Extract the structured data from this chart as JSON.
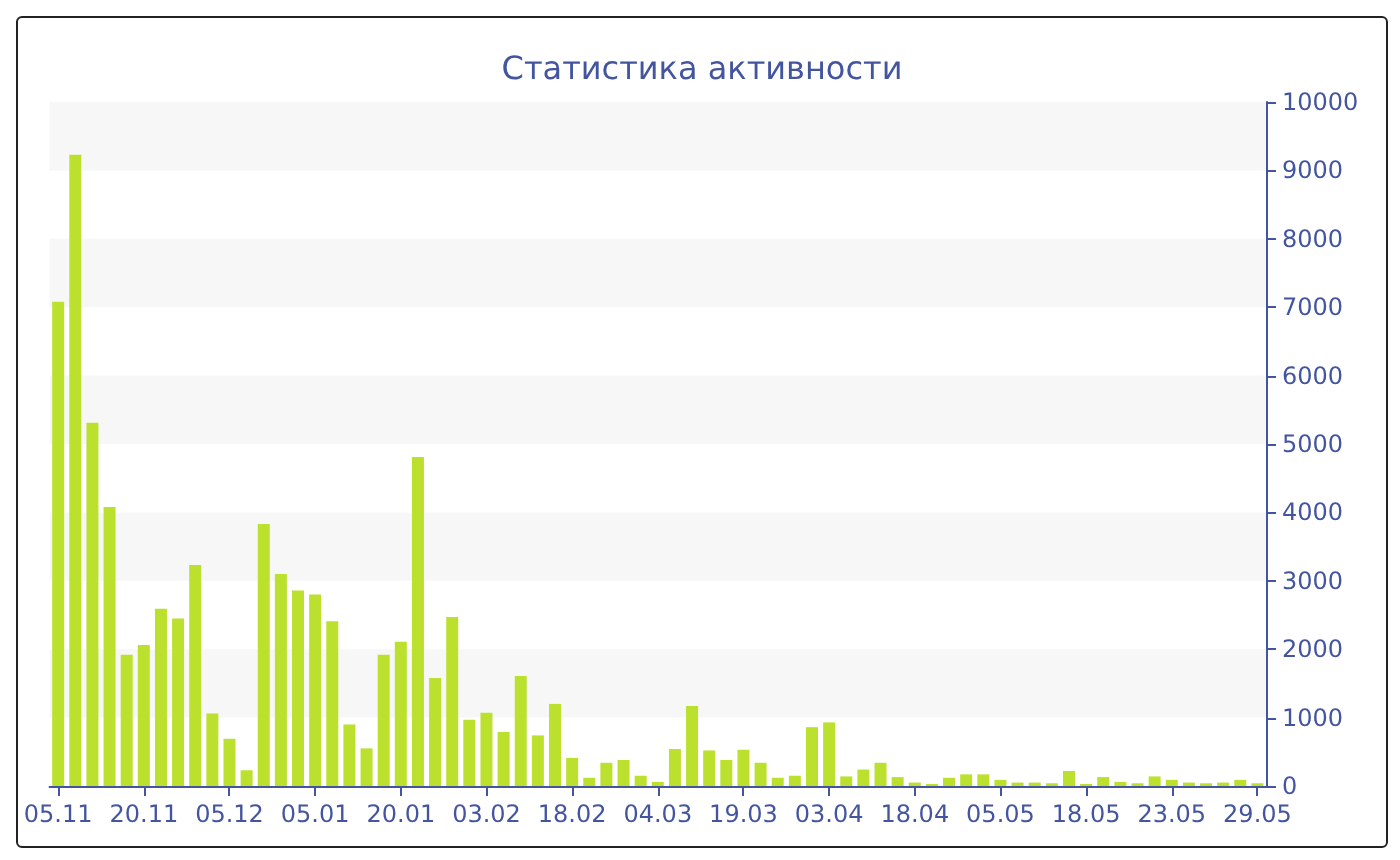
{
  "chart_data": {
    "type": "bar",
    "title": "Статистика активности",
    "categories": [
      "05.11",
      null,
      null,
      null,
      null,
      "20.11",
      null,
      null,
      null,
      null,
      "05.12",
      null,
      null,
      null,
      null,
      "05.01",
      null,
      null,
      null,
      null,
      "20.01",
      null,
      null,
      null,
      null,
      "03.02",
      null,
      null,
      null,
      null,
      "18.02",
      null,
      null,
      null,
      null,
      "04.03",
      null,
      null,
      null,
      null,
      "19.03",
      null,
      null,
      null,
      null,
      "03.04",
      null,
      null,
      null,
      null,
      "18.04",
      null,
      null,
      null,
      null,
      "05.05",
      null,
      null,
      null,
      null,
      "18.05",
      null,
      null,
      null,
      null,
      "23.05",
      null,
      null,
      null,
      null,
      "29.05"
    ],
    "values": [
      7080,
      9230,
      5310,
      4080,
      1920,
      2060,
      2590,
      2450,
      3230,
      1060,
      690,
      230,
      3830,
      3100,
      2860,
      2800,
      2410,
      900,
      550,
      1920,
      2110,
      4810,
      1580,
      2470,
      970,
      1070,
      790,
      1610,
      740,
      1200,
      410,
      120,
      340,
      380,
      150,
      60,
      540,
      1170,
      520,
      380,
      530,
      340,
      120,
      150,
      860,
      930,
      140,
      240,
      340,
      130,
      50,
      30,
      120,
      170,
      170,
      90,
      50,
      50,
      40,
      220,
      30,
      130,
      60,
      40,
      140,
      90,
      50,
      40,
      50,
      90,
      40
    ],
    "color": "#bbe02e",
    "ylim": [
      0,
      10000
    ],
    "yticks": [
      0,
      1000,
      2000,
      3000,
      4000,
      5000,
      6000,
      7000,
      8000,
      9000,
      10000
    ],
    "bands": [
      {
        "axis": "y",
        "from": 1000,
        "to": 2000,
        "color": "#f7f7f7"
      },
      {
        "axis": "y",
        "from": 3000,
        "to": 4000,
        "color": "#f7f7f7"
      },
      {
        "axis": "y",
        "from": 5000,
        "to": 6000,
        "color": "#f7f7f7"
      },
      {
        "axis": "y",
        "from": 7000,
        "to": 8000,
        "color": "#f7f7f7"
      },
      {
        "axis": "y",
        "from": 9000,
        "to": 10000,
        "color": "#f7f7f7"
      }
    ]
  }
}
